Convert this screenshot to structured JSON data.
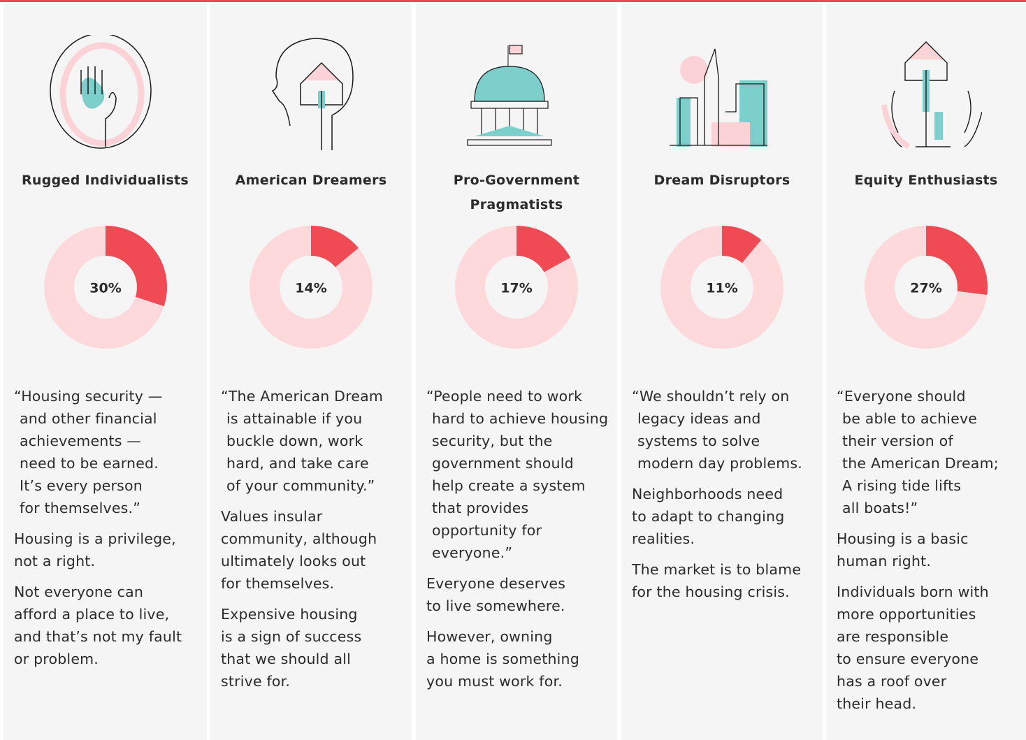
{
  "columns": [
    {
      "title": "Rugged Individualists",
      "value": 30,
      "value_label": "30%",
      "paragraphs": [
        [
          "“Housing security —",
          "and other financial",
          "achievements —",
          "need to be earned.",
          "It’s every person",
          "for themselves.”"
        ],
        [
          "Housing is a privilege,",
          "not a right."
        ],
        [
          "Not everyone can",
          "afford a place to live,",
          "and that’s not my fault",
          "or problem."
        ]
      ]
    },
    {
      "title": "American Dreamers",
      "value": 14,
      "value_label": "14%",
      "paragraphs": [
        [
          "“The American Dream",
          "is attainable if you",
          "buckle down, work",
          "hard, and take care",
          "of your community.”"
        ],
        [
          "Values insular",
          "community, although",
          "ultimately looks out",
          "for themselves."
        ],
        [
          "Expensive housing",
          "is a sign of success",
          "that we should all",
          "strive for."
        ]
      ]
    },
    {
      "title": "Pro-Government Pragmatists",
      "value": 17,
      "value_label": "17%",
      "paragraphs": [
        [
          "“People need to work",
          "hard to achieve housing",
          "security, but the",
          "government should",
          "help create a system",
          "that provides",
          "opportunity for",
          "everyone.”"
        ],
        [
          "Everyone deserves",
          "to live somewhere."
        ],
        [
          "However, owning",
          "a home is something",
          "you must work for."
        ]
      ]
    },
    {
      "title": "Dream Disruptors",
      "value": 11,
      "value_label": "11%",
      "paragraphs": [
        [
          "“We shouldn’t rely on",
          "legacy ideas and",
          "systems to solve",
          "modern day problems."
        ],
        [
          "Neighborhoods need",
          "to adapt to changing",
          "realities."
        ],
        [
          "The market is to blame",
          "for the housing crisis."
        ]
      ]
    },
    {
      "title": "Equity Enthusiasts",
      "value": 27,
      "value_label": "27%",
      "paragraphs": [
        [
          "“Everyone should",
          "be able to achieve",
          "their version of",
          "the American Dream;",
          "A rising tide lifts",
          "all boats!”"
        ],
        [
          "Housing is a basic",
          "human right."
        ],
        [
          "Individuals born with",
          "more opportunities",
          "are responsible",
          "to ensure everyone",
          "has a roof over",
          "their head."
        ]
      ]
    }
  ]
}
